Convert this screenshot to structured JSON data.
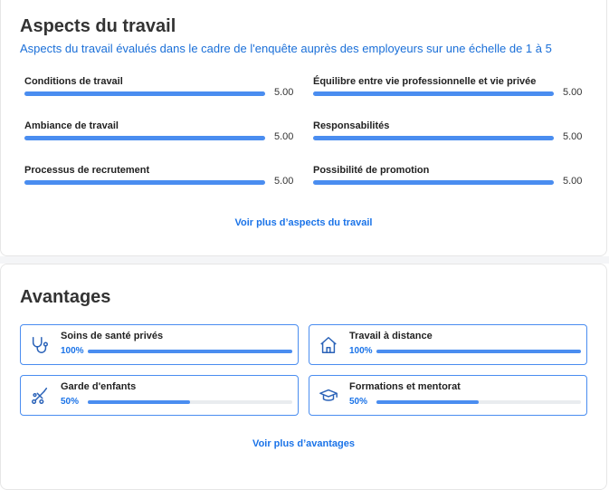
{
  "work_aspects": {
    "title": "Aspects du travail",
    "subtitle": "Aspects du travail évalués dans le cadre de l'enquête auprès des employeurs sur une échelle de 1 à 5",
    "scale_max": 5,
    "items": [
      {
        "label": "Conditions de travail",
        "value": 5.0,
        "value_text": "5.00"
      },
      {
        "label": "Équilibre entre vie professionnelle et vie privée",
        "value": 5.0,
        "value_text": "5.00"
      },
      {
        "label": "Ambiance de travail",
        "value": 5.0,
        "value_text": "5.00"
      },
      {
        "label": "Responsabilités",
        "value": 5.0,
        "value_text": "5.00"
      },
      {
        "label": "Processus de recrutement",
        "value": 5.0,
        "value_text": "5.00"
      },
      {
        "label": "Possibilité de promotion",
        "value": 5.0,
        "value_text": "5.00"
      }
    ],
    "more_link": "Voir plus d’aspects du travail"
  },
  "benefits": {
    "title": "Avantages",
    "items": [
      {
        "label": "Soins de santé privés",
        "percent": 100,
        "percent_text": "100%",
        "icon": "stethoscope-icon"
      },
      {
        "label": "Travail à distance",
        "percent": 100,
        "percent_text": "100%",
        "icon": "home-icon"
      },
      {
        "label": "Garde d'enfants",
        "percent": 50,
        "percent_text": "50%",
        "icon": "stroller-icon"
      },
      {
        "label": "Formations et mentorat",
        "percent": 50,
        "percent_text": "50%",
        "icon": "graduation-cap-icon"
      }
    ],
    "more_link": "Voir plus d’avantages"
  },
  "colors": {
    "accent": "#4a8df0",
    "link": "#1a73e8",
    "track": "#e9ecef"
  }
}
